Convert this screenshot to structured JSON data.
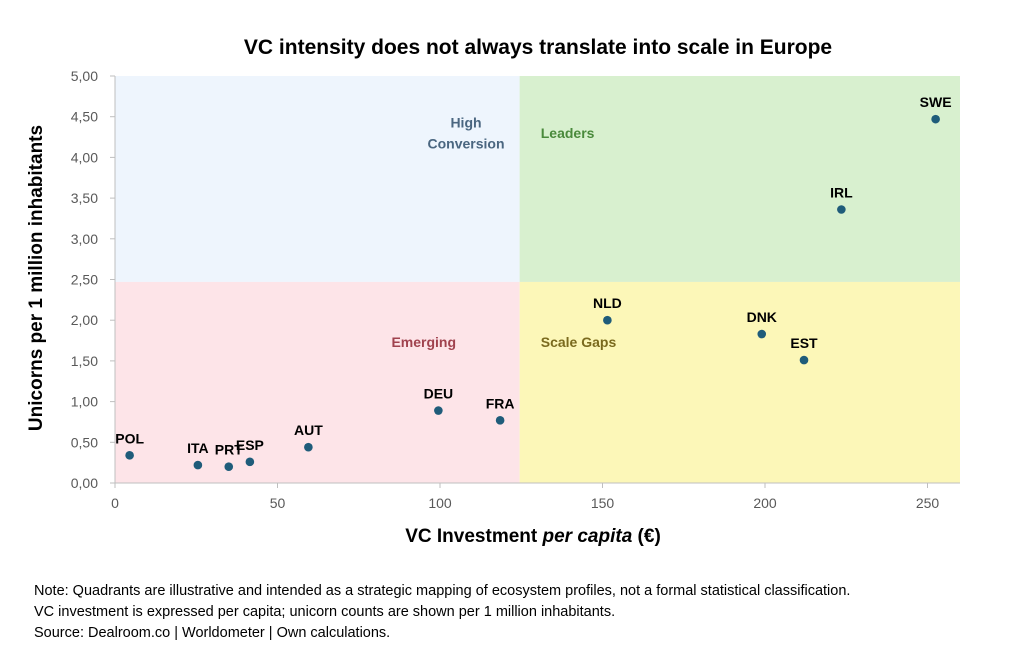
{
  "chart_data": {
    "type": "scatter",
    "title": "VC intensity does not always translate into scale in Europe",
    "xlabel_parts": [
      "VC Investment ",
      "per capita",
      " (€)"
    ],
    "ylabel": "Unicorns per 1 million inhabitants",
    "xlim": [
      0,
      260
    ],
    "ylim": [
      0,
      5
    ],
    "x_ticks": [
      0,
      50,
      100,
      150,
      200,
      250
    ],
    "x_tick_labels": [
      "0",
      "50",
      "100",
      "150",
      "200",
      "250"
    ],
    "y_ticks": [
      0,
      0.5,
      1,
      1.5,
      2,
      2.5,
      3,
      3.5,
      4,
      4.5,
      5
    ],
    "y_tick_labels": [
      "0,00",
      "0,50",
      "1,00",
      "1,50",
      "2,00",
      "2,50",
      "3,00",
      "3,50",
      "4,00",
      "4,50",
      "5,00"
    ],
    "grid": false,
    "marker_color": "#1f5c7a",
    "quadrant_split": {
      "x": 124.5,
      "y": 2.47
    },
    "quadrants": [
      {
        "name": "High Conversion",
        "lines": [
          "High",
          "Conversion"
        ],
        "color": "#eef5fd",
        "text_color": "#4a6680",
        "x_range": [
          0,
          124.5
        ],
        "y_range": [
          2.47,
          5
        ],
        "label_at": [
          108,
          4.37
        ],
        "anchor": "middle"
      },
      {
        "name": "Leaders",
        "lines": [
          "Leaders"
        ],
        "color": "#d8f0cf",
        "text_color": "#4a8a3c",
        "x_range": [
          124.5,
          260
        ],
        "y_range": [
          2.47,
          5
        ],
        "label_at": [
          131,
          4.24
        ],
        "anchor": "start"
      },
      {
        "name": "Emerging",
        "lines": [
          "Emerging"
        ],
        "color": "#fde4e8",
        "text_color": "#a0424e",
        "x_range": [
          0,
          124.5
        ],
        "y_range": [
          0,
          2.47
        ],
        "label_at": [
          95,
          1.67
        ],
        "anchor": "middle"
      },
      {
        "name": "Scale Gaps",
        "lines": [
          "Scale Gaps"
        ],
        "color": "#fcf7b8",
        "text_color": "#7a6a1e",
        "x_range": [
          124.5,
          260
        ],
        "y_range": [
          0,
          2.47
        ],
        "label_at": [
          131,
          1.67
        ],
        "anchor": "start"
      }
    ],
    "points": [
      {
        "label": "POL",
        "x": 4.5,
        "y": 0.34
      },
      {
        "label": "ITA",
        "x": 25.5,
        "y": 0.22
      },
      {
        "label": "PRT",
        "x": 35,
        "y": 0.2
      },
      {
        "label": "ESP",
        "x": 41.5,
        "y": 0.26
      },
      {
        "label": "AUT",
        "x": 59.5,
        "y": 0.44
      },
      {
        "label": "DEU",
        "x": 99.5,
        "y": 0.89
      },
      {
        "label": "FRA",
        "x": 118.5,
        "y": 0.77
      },
      {
        "label": "NLD",
        "x": 151.5,
        "y": 2.0
      },
      {
        "label": "DNK",
        "x": 199,
        "y": 1.83
      },
      {
        "label": "EST",
        "x": 212,
        "y": 1.51
      },
      {
        "label": "IRL",
        "x": 223.5,
        "y": 3.36
      },
      {
        "label": "SWE",
        "x": 252.5,
        "y": 4.47
      }
    ]
  },
  "notes": [
    "Note: Quadrants are illustrative and intended as a strategic mapping of ecosystem profiles, not a formal statistical classification.",
    "VC investment is expressed per capita; unicorn counts are shown per 1 million inhabitants.",
    "Source: Dealroom.co | Worldometer | Own calculations."
  ]
}
